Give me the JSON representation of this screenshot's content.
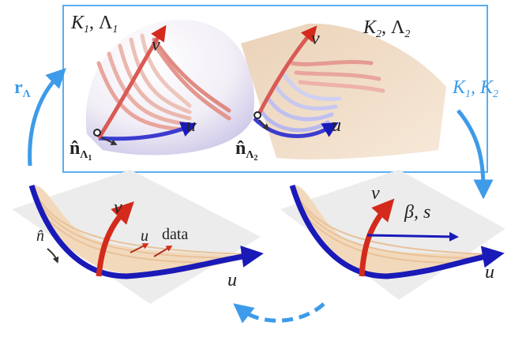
{
  "top_left": {
    "title": [
      "K",
      "1",
      ", Λ",
      "1"
    ],
    "v": "v",
    "u": "u",
    "normal": [
      "n̂",
      "Λ",
      "1"
    ]
  },
  "top_right": {
    "title": [
      "K",
      "2",
      ", Λ",
      "2"
    ],
    "v": "v",
    "u": "u",
    "normal": [
      "n̂",
      "Λ",
      "2"
    ]
  },
  "arrow_left": [
    "r",
    "Λ"
  ],
  "arrow_right": [
    "K",
    "1",
    ", K",
    "2"
  ],
  "bottom_left": {
    "v": "v",
    "u": "u",
    "data": "data",
    "normal": "n̂",
    "u_edge": "u"
  },
  "bottom_right": {
    "v": "v",
    "beta_s": "β, s",
    "u_edge": "u"
  }
}
